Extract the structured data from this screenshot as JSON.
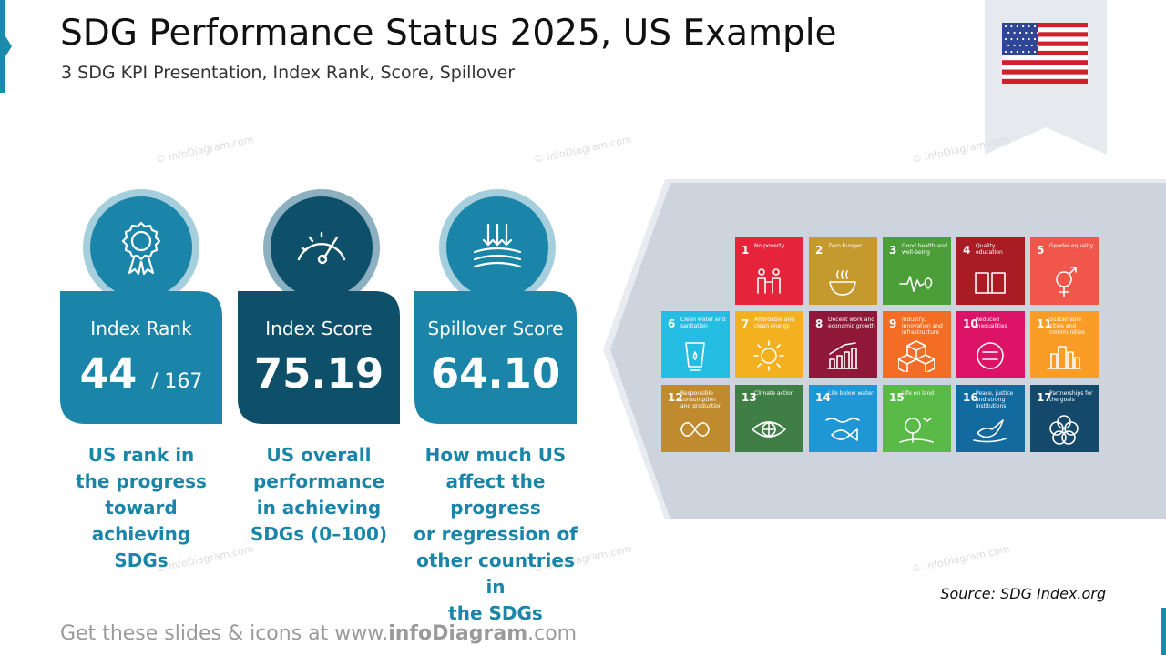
{
  "header": {
    "title": "SDG Performance Status 2025, US Example",
    "subtitle": "3 SDG KPI Presentation, Index Rank, Score, Spillover"
  },
  "flag": {
    "icon": "us-flag-icon"
  },
  "watermark": "© infoDiagram.com",
  "colors": {
    "teal": "#1a85a8",
    "dark_teal": "#0e4f6a",
    "panel": "#cdd4dd",
    "ribbon": "#e6e9ee"
  },
  "kpis": [
    {
      "label": "Index Rank",
      "value": "44",
      "value_suffix": "/ 167",
      "icon": "award-ribbon-icon",
      "description": [
        "US rank in",
        "the progress",
        "toward",
        "achieving",
        "SDGs"
      ]
    },
    {
      "label": "Index Score",
      "value": "75.19",
      "icon": "gauge-icon",
      "description": [
        "US overall",
        "performance",
        "in achieving",
        "SDGs   (0–100)"
      ]
    },
    {
      "label": "Spillover Score",
      "value": "64.10",
      "icon": "spillover-arrows-icon",
      "description": [
        "How much US",
        "affect the progress",
        "or regression of",
        "other countries in",
        "the SDGs"
      ]
    }
  ],
  "sdg_goals": [
    {
      "num": "1",
      "label": "No poverty",
      "color": "#e5243b",
      "icon": "family-icon"
    },
    {
      "num": "2",
      "label": "Zero hunger",
      "color": "#c49a2e",
      "icon": "bowl-icon"
    },
    {
      "num": "3",
      "label": "Good health and well-being",
      "color": "#4c9f38",
      "icon": "heartbeat-icon"
    },
    {
      "num": "4",
      "label": "Quality education",
      "color": "#a91c24",
      "icon": "book-icon"
    },
    {
      "num": "5",
      "label": "Gender equality",
      "color": "#f0574a",
      "icon": "gender-icon"
    },
    {
      "num": "6",
      "label": "Clean water and sanitation",
      "color": "#26bde2",
      "icon": "water-glass-icon"
    },
    {
      "num": "7",
      "label": "Affordable and clean energy",
      "color": "#f3b01f",
      "icon": "sun-icon"
    },
    {
      "num": "8",
      "label": "Decent work and economic growth",
      "color": "#8f1838",
      "icon": "growth-chart-icon"
    },
    {
      "num": "9",
      "label": "Industry, innovation and infrastructure",
      "color": "#f36d25",
      "icon": "cubes-icon"
    },
    {
      "num": "10",
      "label": "Reduced inequalities",
      "color": "#dd1367",
      "icon": "equality-icon"
    },
    {
      "num": "11",
      "label": "Sustainable cities and communities",
      "color": "#f99d26",
      "icon": "city-icon"
    },
    {
      "num": "12",
      "label": "Responsible consumption and production",
      "color": "#bf8b2e",
      "icon": "infinity-icon"
    },
    {
      "num": "13",
      "label": "Climate action",
      "color": "#3f7e44",
      "icon": "eye-globe-icon"
    },
    {
      "num": "14",
      "label": "Life below water",
      "color": "#1f97d4",
      "icon": "fish-icon"
    },
    {
      "num": "15",
      "label": "Life on land",
      "color": "#59ba48",
      "icon": "tree-icon"
    },
    {
      "num": "16",
      "label": "Peace, justice and strong institutions",
      "color": "#126a9f",
      "icon": "dove-icon"
    },
    {
      "num": "17",
      "label": "Partnerships for the goals",
      "color": "#14496b",
      "icon": "flower-icon"
    }
  ],
  "source": "Source: SDG Index.org",
  "footer": {
    "prefix": "Get these slides & icons at www.",
    "brand": "infoDiagram",
    "suffix": ".com"
  }
}
